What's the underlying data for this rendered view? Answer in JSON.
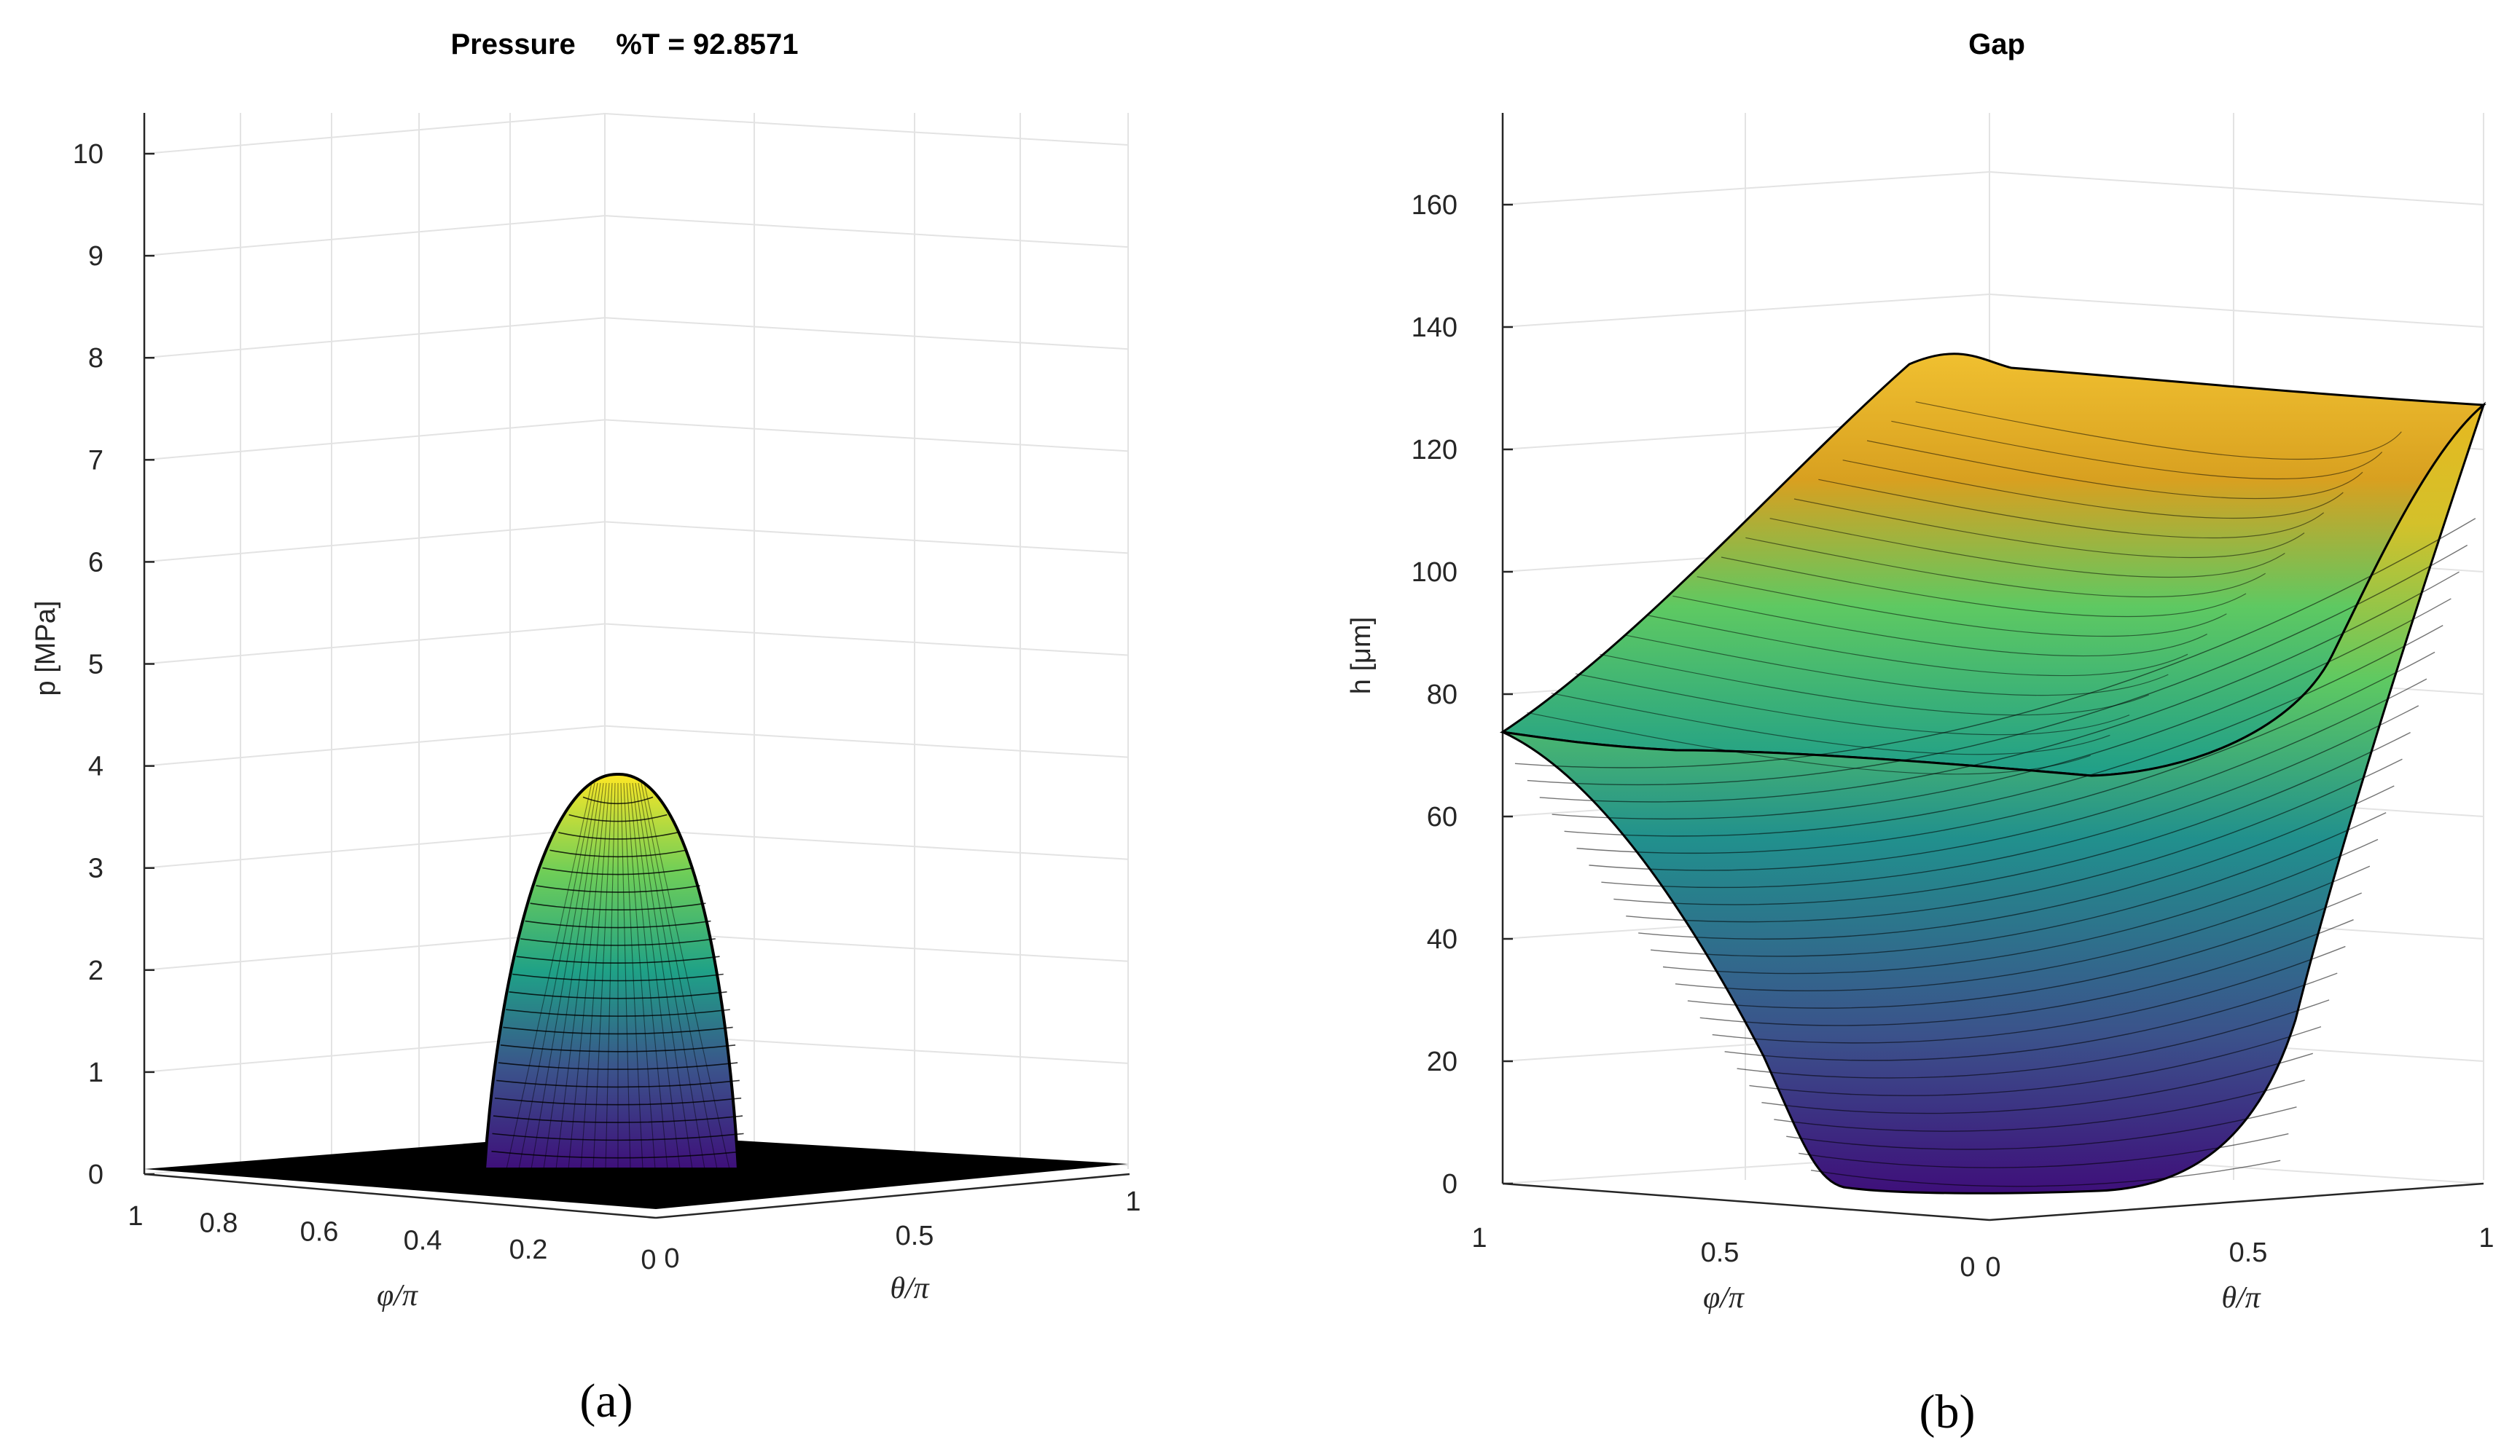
{
  "panels": [
    {
      "id": "a",
      "panel_label": "(a)",
      "title": "Pressure     %T = 92.8571",
      "zlabel": "p [MPa]",
      "phi_label": "φ/π",
      "theta_label": "θ/π",
      "colors": {
        "low": "#3e0f7a",
        "mid": "#1fa187",
        "high": "#fde725"
      }
    },
    {
      "id": "b",
      "panel_label": "(b)",
      "title": "Gap",
      "zlabel": "h [μm]",
      "phi_label": "φ/π",
      "theta_label": "θ/π",
      "colors": {
        "low": "#3e0f7a",
        "mid": "#1fa187",
        "high": "#fde725"
      }
    }
  ],
  "chart_data": [
    {
      "type": "surface",
      "title": "Pressure     %T = 92.8571",
      "zlabel": "p [MPa]",
      "xlabel": "φ/π",
      "ylabel": "θ/π",
      "zlim": [
        0,
        10.4
      ],
      "z_ticks": [
        "0",
        "1",
        "2",
        "3",
        "4",
        "5",
        "6",
        "7",
        "8",
        "9",
        "10"
      ],
      "phi_ticks": [
        "1",
        "0.8",
        "0.6",
        "0.4",
        "0.2",
        "0"
      ],
      "theta_ticks": [
        "0",
        "0.5",
        "1"
      ],
      "peak_value": 3.9,
      "peak_location": {
        "phi": 0.0,
        "theta": 0.0
      },
      "description_values": {
        "base_level": 0,
        "max_pressure": 3.9
      }
    },
    {
      "type": "surface",
      "title": "Gap",
      "zlabel": "h [μm]",
      "xlabel": "φ/π",
      "ylabel": "θ/π",
      "zlim": [
        0,
        175
      ],
      "z_ticks": [
        "0",
        "20",
        "40",
        "60",
        "80",
        "100",
        "120",
        "140",
        "160"
      ],
      "phi_ticks": [
        "1",
        "0.5",
        "0"
      ],
      "theta_ticks": [
        "0",
        "0.5",
        "1"
      ],
      "corner_values": {
        "phi1_theta0": 73,
        "phi1_theta1": 132,
        "phi0_theta1": 127,
        "phi0_theta0": 0
      },
      "min_value": 0,
      "max_value": 133
    }
  ]
}
